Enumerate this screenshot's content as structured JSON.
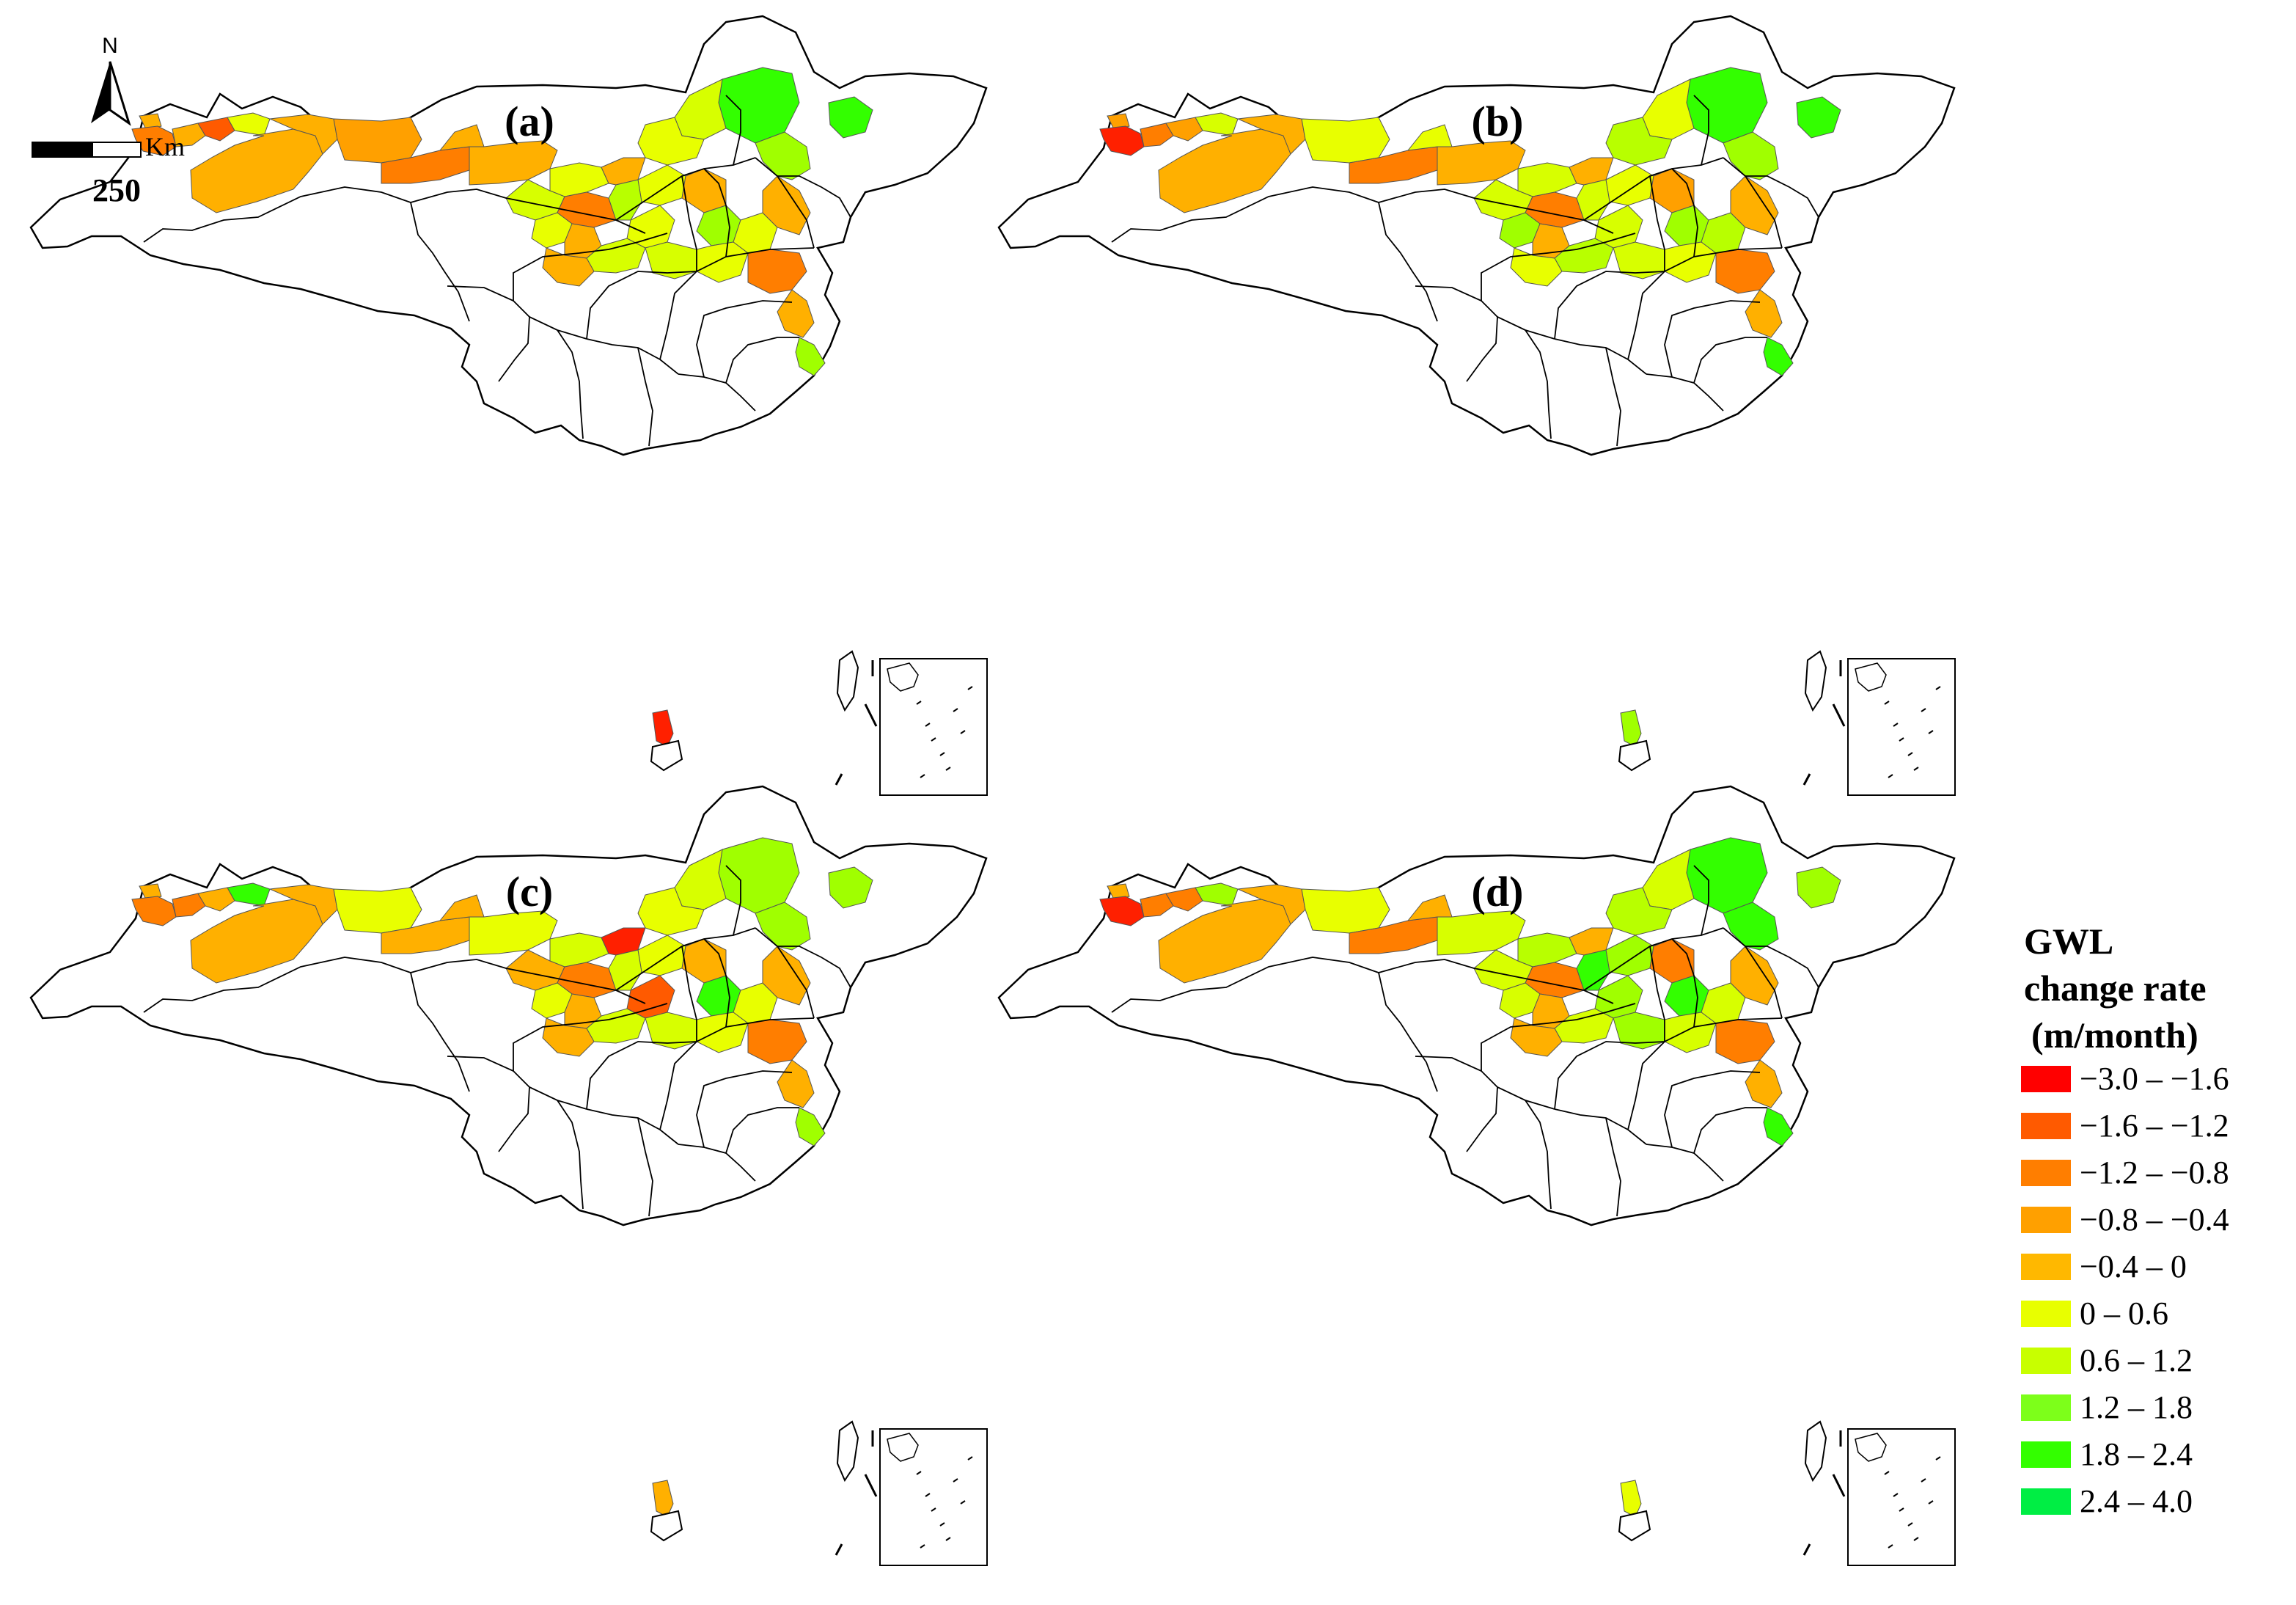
{
  "panels": [
    {
      "label": "(a)",
      "colors": [
        "#ffb000",
        "#ff7e00",
        "#ffb000",
        "#ff5a00",
        "#e8ff00",
        "#ffb000",
        "#ffb000",
        "#ffa000",
        "#ff7e00",
        "#ffb000",
        "#ffb000",
        "#e8ff00",
        "#d7ff00",
        "#33ff00",
        "#33ff00",
        "#d7ff00",
        "#e8ff00",
        "#a0ff00",
        "#ffb000",
        "#e8ff00",
        "#ff7e00",
        "#b8ff00",
        "#e8ff00",
        "#ffb000",
        "#e8ff00",
        "#ffb000",
        "#a0ff00",
        "#e8ff00",
        "#ffb000",
        "#d7ff00",
        "#e8ff00",
        "#ff2000",
        "#ff7e00",
        "#ffb000",
        "#a0ff00",
        "#d7ff00",
        "#ffb000"
      ]
    },
    {
      "label": "(b)",
      "colors": [
        "#ffa000",
        "#ff2000",
        "#ff7e00",
        "#ffa000",
        "#d7ff00",
        "#ffb000",
        "#ffb000",
        "#e8ff00",
        "#ff7e00",
        "#e8ff00",
        "#ffb000",
        "#d7ff00",
        "#d7ff00",
        "#33ff00",
        "#33ff00",
        "#e8ff00",
        "#b8ff00",
        "#a0ff00",
        "#ffb000",
        "#e8ff00",
        "#ff7e00",
        "#d7ff00",
        "#a0ff00",
        "#ffb000",
        "#d7ff00",
        "#ffa000",
        "#a0ff00",
        "#b8ff00",
        "#ffb000",
        "#d7ff00",
        "#e8ff00",
        "#a0ff00",
        "#ff7e00",
        "#ffb000",
        "#33ff00",
        "#b8ff00",
        "#e8ff00"
      ]
    },
    {
      "label": "(c)",
      "colors": [
        "#ffb000",
        "#ff7e00",
        "#ff7e00",
        "#ffb000",
        "#33ff00",
        "#ffb000",
        "#ffb000",
        "#e8ff00",
        "#ffb000",
        "#ffb000",
        "#e8ff00",
        "#d7ff00",
        "#ffb000",
        "#a0ff00",
        "#a0ff00",
        "#d7ff00",
        "#e8ff00",
        "#a0ff00",
        "#ff2000",
        "#e8ff00",
        "#ff7e00",
        "#d7ff00",
        "#e8ff00",
        "#ffb000",
        "#ff5a00",
        "#ffb000",
        "#33ff00",
        "#e8ff00",
        "#ffb000",
        "#d7ff00",
        "#e8ff00",
        "#ffb000",
        "#ff7e00",
        "#ffb000",
        "#a0ff00",
        "#d7ff00",
        "#ffb000"
      ]
    },
    {
      "label": "(d)",
      "colors": [
        "#ffb000",
        "#ff2000",
        "#ff7e00",
        "#ff7e00",
        "#a0ff00",
        "#ffb000",
        "#ffb000",
        "#e8ff00",
        "#ff7e00",
        "#ffb000",
        "#d7ff00",
        "#b8ff00",
        "#d7ff00",
        "#33ff00",
        "#a0ff00",
        "#d7ff00",
        "#b8ff00",
        "#33ff00",
        "#ffb000",
        "#a0ff00",
        "#ff7e00",
        "#33ff00",
        "#d7ff00",
        "#ffb000",
        "#a0ff00",
        "#ff7e00",
        "#33ff00",
        "#d7ff00",
        "#ffb000",
        "#a0ff00",
        "#d7ff00",
        "#e8ff00",
        "#ff7e00",
        "#ffb000",
        "#33ff00",
        "#d7ff00",
        "#ffb000"
      ]
    }
  ],
  "scale_bar": {
    "unit": "Km",
    "value": "250"
  },
  "north_arrow": {
    "label": "N"
  },
  "legend": {
    "title_lines": [
      "GWL",
      "change rate",
      "(m/month)"
    ],
    "items": [
      {
        "label": "−3.0 – −1.6",
        "color": "#ff0000"
      },
      {
        "label": "−1.6 – −1.2",
        "color": "#ff5a00"
      },
      {
        "label": "−1.2 – −0.8",
        "color": "#ff7e00"
      },
      {
        "label": "−0.8 – −0.4",
        "color": "#ffa000"
      },
      {
        "label": "−0.4 – 0",
        "color": "#ffb800"
      },
      {
        "label": "0 – 0.6",
        "color": "#e8ff00"
      },
      {
        "label": "0.6 – 1.2",
        "color": "#c8ff00"
      },
      {
        "label": "1.2 – 1.8",
        "color": "#7dff1a"
      },
      {
        "label": "1.8 – 2.4",
        "color": "#33ff00"
      },
      {
        "label": "2.4 – 4.0",
        "color": "#00ee44"
      }
    ]
  }
}
